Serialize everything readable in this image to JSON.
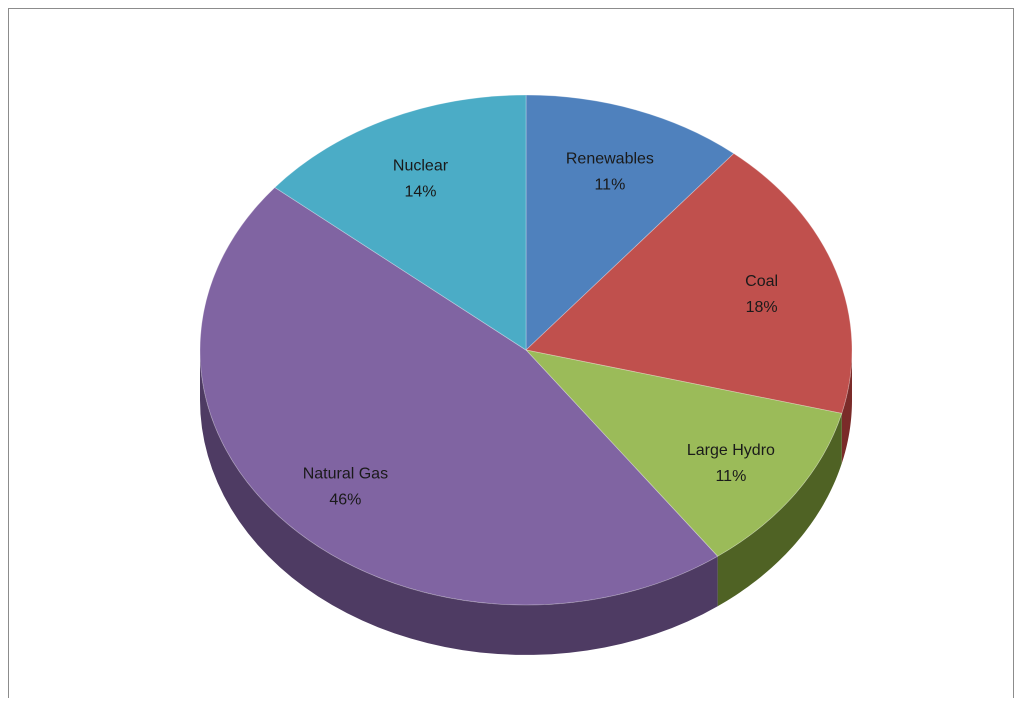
{
  "chart_data": {
    "type": "pie",
    "title": "",
    "three_d": true,
    "legend": "none",
    "slices": [
      {
        "label": "Renewables",
        "percent_label": "11%",
        "value": 11,
        "color": "#4f81bd",
        "side_color": "#2f4f76"
      },
      {
        "label": "Coal",
        "percent_label": "18%",
        "value": 18,
        "color": "#c0504d",
        "side_color": "#7a2b29"
      },
      {
        "label": "Large Hydro",
        "percent_label": "11%",
        "value": 11,
        "color": "#9bbb59",
        "side_color": "#4f6224"
      },
      {
        "label": "Natural Gas",
        "percent_label": "46%",
        "value": 46,
        "color": "#8064a2",
        "side_color": "#4e3b63"
      },
      {
        "label": "Nuclear",
        "percent_label": "14%",
        "value": 14,
        "color": "#4bacc6",
        "side_color": "#26687a"
      }
    ]
  }
}
